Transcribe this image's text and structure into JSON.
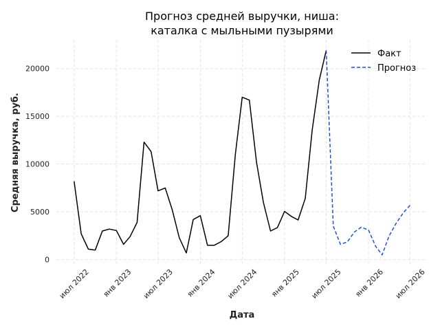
{
  "chart_data": {
    "type": "line",
    "title": [
      "Прогноз средней выручки, ниша:",
      "каталка с мыльными пузырями"
    ],
    "xlabel": "Дата",
    "ylabel": "Средняя выручка, руб.",
    "ylim": [
      -600,
      23000
    ],
    "yticks": [
      0,
      5000,
      10000,
      15000,
      20000
    ],
    "xlim": [
      "2022-04-15",
      "2026-09-15"
    ],
    "xticks": [
      {
        "date": "2022-07-01",
        "label": "июл 2022"
      },
      {
        "date": "2023-01-01",
        "label": "янв 2023"
      },
      {
        "date": "2023-07-01",
        "label": "июл 2023"
      },
      {
        "date": "2024-01-01",
        "label": "янв 2024"
      },
      {
        "date": "2024-07-01",
        "label": "июл 2024"
      },
      {
        "date": "2025-01-01",
        "label": "янв 2025"
      },
      {
        "date": "2025-07-01",
        "label": "июл 2025"
      },
      {
        "date": "2026-01-01",
        "label": "янв 2026"
      },
      {
        "date": "2026-07-01",
        "label": "июл 2026"
      }
    ],
    "grid": true,
    "legend_position": "top-right",
    "series": [
      {
        "name": "Факт",
        "color": "#000000",
        "dash": "solid",
        "x": [
          "2022-07-01",
          "2022-08-01",
          "2022-09-01",
          "2022-10-01",
          "2022-11-01",
          "2022-12-01",
          "2023-01-01",
          "2023-02-01",
          "2023-03-01",
          "2023-04-01",
          "2023-05-01",
          "2023-06-01",
          "2023-07-01",
          "2023-08-01",
          "2023-09-01",
          "2023-10-01",
          "2023-11-01",
          "2023-12-01",
          "2024-01-01",
          "2024-02-01",
          "2024-03-01",
          "2024-04-01",
          "2024-05-01",
          "2024-06-01",
          "2024-07-01",
          "2024-08-01",
          "2024-09-01",
          "2024-10-01",
          "2024-11-01",
          "2024-12-01",
          "2025-01-01",
          "2025-02-01",
          "2025-03-01",
          "2025-04-01",
          "2025-05-01",
          "2025-06-01",
          "2025-07-01"
        ],
        "values": [
          8200,
          2700,
          1100,
          1000,
          3000,
          3200,
          3050,
          1600,
          2400,
          3900,
          12300,
          11300,
          7200,
          7500,
          5200,
          2300,
          700,
          4200,
          4600,
          1500,
          1500,
          1900,
          2500,
          11000,
          17000,
          16700,
          10200,
          6000,
          3000,
          3350,
          5050,
          4500,
          4150,
          6400,
          13500,
          18800,
          21900
        ]
      },
      {
        "name": "Прогноз",
        "color": "#1f4fd6",
        "dash": "dashed",
        "x": [
          "2025-07-01",
          "2025-08-01",
          "2025-09-01",
          "2025-10-01",
          "2025-11-01",
          "2025-12-01",
          "2026-01-01",
          "2026-02-01",
          "2026-03-01",
          "2026-04-01",
          "2026-05-01",
          "2026-06-01",
          "2026-07-01"
        ],
        "values": [
          21900,
          3500,
          1600,
          1850,
          2900,
          3400,
          3100,
          1400,
          500,
          2500,
          3800,
          4900,
          5700
        ]
      }
    ]
  }
}
